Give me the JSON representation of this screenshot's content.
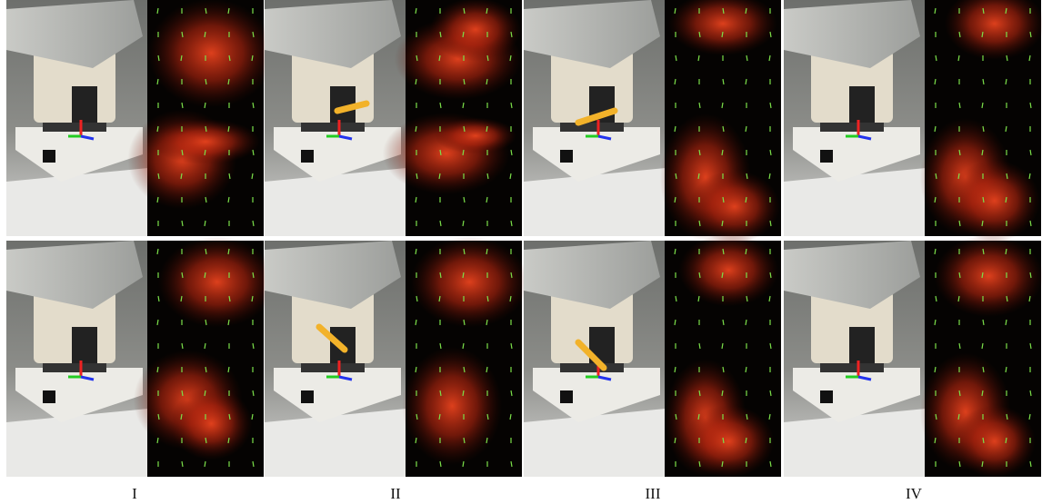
{
  "columns": [
    "I",
    "II",
    "III",
    "IV"
  ]
}
